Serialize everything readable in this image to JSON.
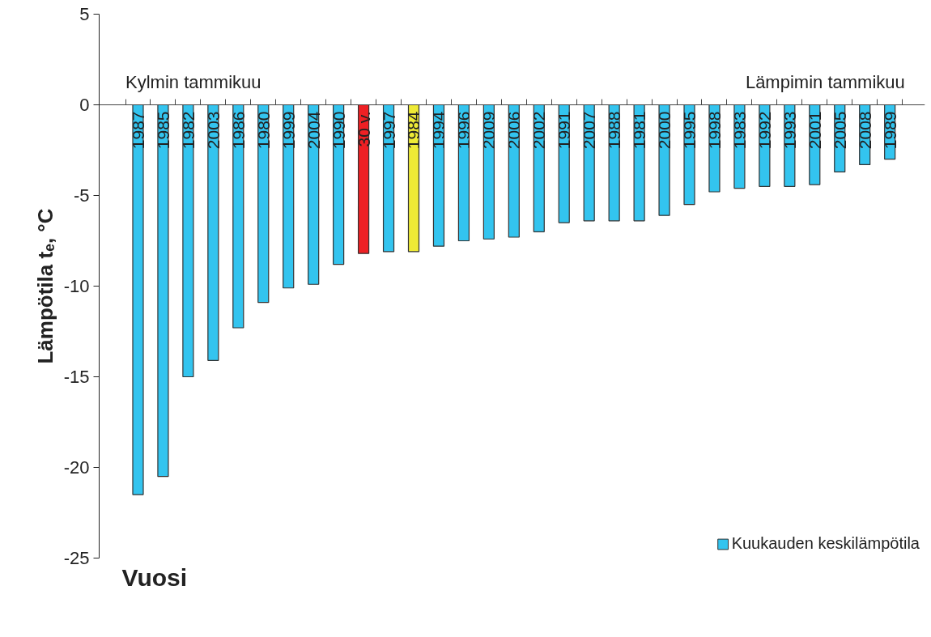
{
  "chart_data": {
    "type": "bar",
    "ylabel": "Lämpötila tₑ, °C",
    "categories": [
      "1987",
      "1985",
      "1982",
      "2003",
      "1986",
      "1980",
      "1999",
      "2004",
      "1990",
      "30 v.",
      "1997",
      "1984",
      "1994",
      "1996",
      "2009",
      "2006",
      "2002",
      "1991",
      "2007",
      "1988",
      "1981",
      "2000",
      "1995",
      "1998",
      "1983",
      "1992",
      "1993",
      "2001",
      "2005",
      "2008",
      "1989"
    ],
    "series": [
      {
        "name": "Kuukauden keskilämpötila",
        "color": "#33c4ef",
        "values": [
          -21.5,
          -20.5,
          -15.0,
          -14.1,
          -12.3,
          -10.9,
          -10.1,
          -9.9,
          -8.8,
          -8.2,
          -8.1,
          -8.1,
          -7.8,
          -7.5,
          -7.4,
          -7.3,
          -7.0,
          -6.5,
          -6.4,
          -6.4,
          -6.4,
          -6.1,
          -5.5,
          -4.8,
          -4.6,
          -4.5,
          -4.5,
          -4.4,
          -3.7,
          -3.3,
          -3.0
        ],
        "colors": [
          "#33c4ef",
          "#33c4ef",
          "#33c4ef",
          "#33c4ef",
          "#33c4ef",
          "#33c4ef",
          "#33c4ef",
          "#33c4ef",
          "#33c4ef",
          "#ee2024",
          "#33c4ef",
          "#eeea36",
          "#33c4ef",
          "#33c4ef",
          "#33c4ef",
          "#33c4ef",
          "#33c4ef",
          "#33c4ef",
          "#33c4ef",
          "#33c4ef",
          "#33c4ef",
          "#33c4ef",
          "#33c4ef",
          "#33c4ef",
          "#33c4ef",
          "#33c4ef",
          "#33c4ef",
          "#33c4ef",
          "#33c4ef",
          "#33c4ef",
          "#33c4ef"
        ]
      }
    ],
    "ylim": [
      -25,
      5
    ],
    "yticks": [
      5,
      0,
      -5,
      -10,
      -15,
      -20,
      -25
    ],
    "annotations": [
      "Kylmin tammikuu",
      "Lämpimin tammikuu",
      "Vuosi"
    ],
    "grid": false,
    "legend": "bottom right"
  }
}
